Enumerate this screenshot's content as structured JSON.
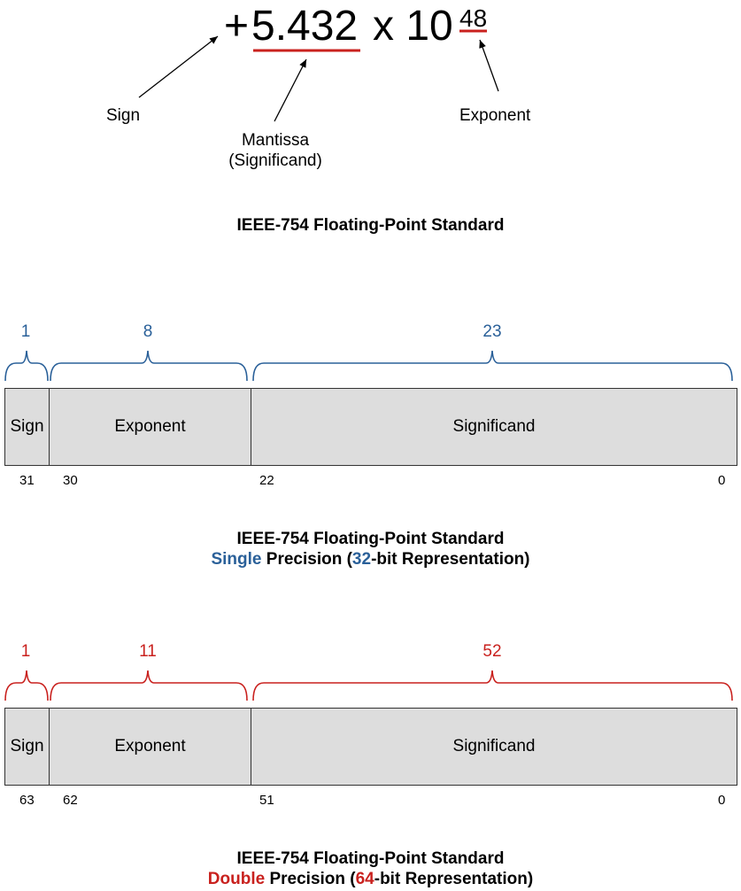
{
  "equation": {
    "sign": "+",
    "mantissa": "5.432",
    "times": "x 10",
    "exponent": "48"
  },
  "labels": {
    "sign": "Sign",
    "mantissa_line1": "Mantissa",
    "mantissa_line2": "(Significand)",
    "exponent": "Exponent"
  },
  "standard_title": "IEEE-754 Floating-Point Standard",
  "single": {
    "widths": {
      "sign": "1",
      "exponent": "8",
      "significand": "23"
    },
    "fields": {
      "sign": "Sign",
      "exponent": "Exponent",
      "significand": "Significand"
    },
    "bits": {
      "sign_pos": "31",
      "exp_start": "30",
      "sig_start": "22",
      "sig_end": "0"
    },
    "title": "IEEE-754 Floating-Point Standard",
    "subtitle": {
      "word": "Single",
      "mid": " Precision (",
      "bits": "32",
      "tail": "-bit Representation)"
    },
    "color": "#2a6099"
  },
  "double": {
    "widths": {
      "sign": "1",
      "exponent": "11",
      "significand": "52"
    },
    "fields": {
      "sign": "Sign",
      "exponent": "Exponent",
      "significand": "Significand"
    },
    "bits": {
      "sign_pos": "63",
      "exp_start": "62",
      "sig_start": "51",
      "sig_end": "0"
    },
    "title": "IEEE-754 Floating-Point Standard",
    "subtitle": {
      "word": "Double",
      "mid": " Precision (",
      "bits": "64",
      "tail": "-bit Representation)"
    },
    "color": "#c9211e"
  }
}
